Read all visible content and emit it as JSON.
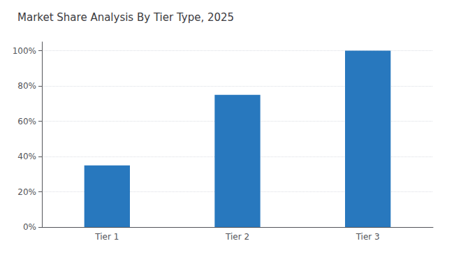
{
  "chart_data": {
    "type": "bar",
    "title": "Market Share Analysis By Tier Type, 2025",
    "categories": [
      "Tier 1",
      "Tier 2",
      "Tier 3"
    ],
    "values": [
      35,
      75,
      100
    ],
    "color": "#2878BE",
    "ylim": [
      0,
      105
    ],
    "yticks": [
      {
        "value": 0,
        "label": "0%"
      },
      {
        "value": 20,
        "label": "20%"
      },
      {
        "value": 40,
        "label": "40%"
      },
      {
        "value": 60,
        "label": "60%"
      },
      {
        "value": 80,
        "label": "80%"
      },
      {
        "value": 100,
        "label": "100%"
      }
    ],
    "grid": true
  }
}
